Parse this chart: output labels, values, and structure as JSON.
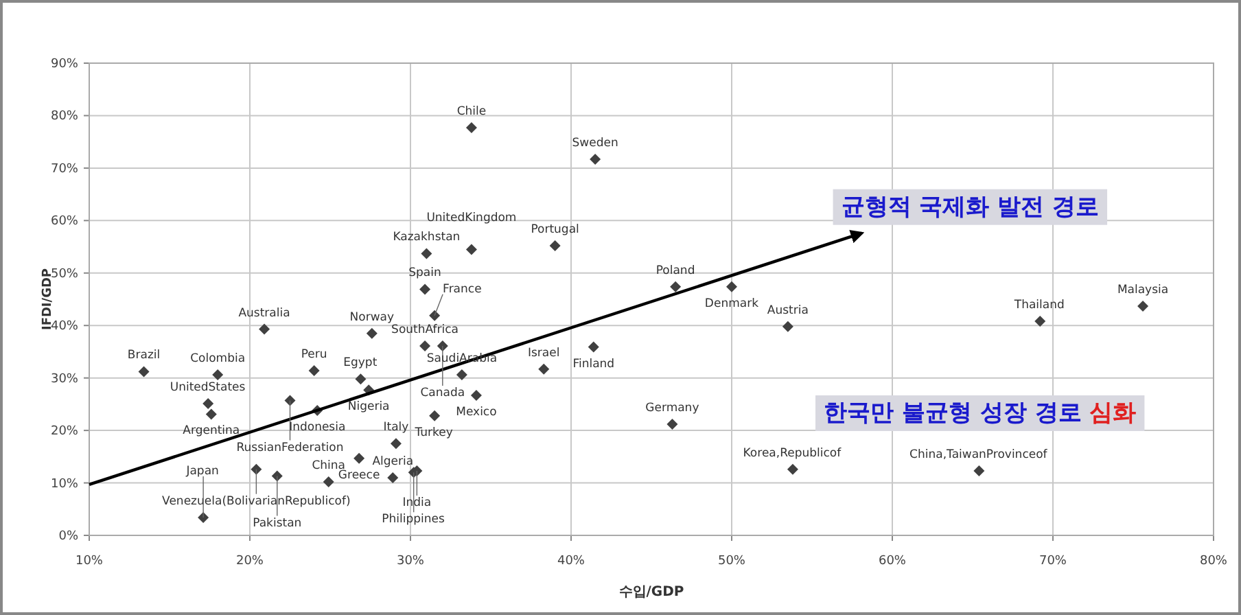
{
  "chart_data": {
    "type": "scatter",
    "xlabel": "수입/GDP",
    "ylabel": "IFDI/GDP",
    "grid": true,
    "xlim": [
      0.1,
      0.8
    ],
    "xticks": [
      {
        "value": 0.1,
        "label": "10%"
      },
      {
        "value": 0.2,
        "label": "20%"
      },
      {
        "value": 0.3,
        "label": "30%"
      },
      {
        "value": 0.4,
        "label": "40%"
      },
      {
        "value": 0.5,
        "label": "50%"
      },
      {
        "value": 0.6,
        "label": "60%"
      },
      {
        "value": 0.7,
        "label": "70%"
      },
      {
        "value": 0.8,
        "label": "80%"
      }
    ],
    "ylim": [
      0,
      0.9
    ],
    "yticks": [
      {
        "value": 0,
        "label": "0%"
      },
      {
        "value": 0.1,
        "label": "10%"
      },
      {
        "value": 0.2,
        "label": "20%"
      },
      {
        "value": 0.3,
        "label": "30%"
      },
      {
        "value": 0.4,
        "label": "40%"
      },
      {
        "value": 0.5,
        "label": "50%"
      },
      {
        "value": 0.6,
        "label": "60%"
      },
      {
        "value": 0.7,
        "label": "70%"
      },
      {
        "value": 0.8,
        "label": "80%"
      },
      {
        "value": 0.9,
        "label": "90%"
      }
    ],
    "series": [
      {
        "marker": "diamond",
        "color": "#404040",
        "x": [
          0.338,
          0.415,
          0.31,
          0.39,
          0.309,
          0.209,
          0.276,
          0.309,
          0.32,
          0.414,
          0.134,
          0.18,
          0.24,
          0.269,
          0.274,
          0.332,
          0.383,
          0.341,
          0.315,
          0.176,
          0.225,
          0.242,
          0.268,
          0.304,
          0.302,
          0.204,
          0.217,
          0.249,
          0.289,
          0.465,
          0.5,
          0.535,
          0.692,
          0.756,
          0.654,
          0.338,
          0.315,
          0.174,
          0.291,
          0.171,
          0.463,
          0.538
        ],
        "values": [
          0.777,
          0.717,
          0.537,
          0.552,
          0.469,
          0.393,
          0.385,
          0.361,
          0.361,
          0.359,
          0.312,
          0.306,
          0.314,
          0.298,
          0.277,
          0.306,
          0.317,
          0.267,
          0.228,
          0.231,
          0.257,
          0.238,
          0.147,
          0.123,
          0.12,
          0.126,
          0.113,
          0.102,
          0.11,
          0.474,
          0.474,
          0.398,
          0.408,
          0.437,
          0.123,
          0.545,
          0.419,
          0.251,
          0.175,
          0.034,
          0.212,
          0.126
        ]
      },
      {
        "type": "line",
        "marker": "none",
        "color": "#000000",
        "x": [
          0.1,
          0.581
        ],
        "values": [
          0.097,
          0.576
        ]
      }
    ],
    "annotations": [
      {
        "text": "Chile",
        "x": 0.338,
        "y": 0.777
      },
      {
        "text": "Sweden",
        "x": 0.415,
        "y": 0.717
      },
      {
        "text": "Kazakhstan",
        "x": 0.31,
        "y": 0.537
      },
      {
        "text": "Portugal",
        "x": 0.39,
        "y": 0.552
      },
      {
        "text": "Spain",
        "x": 0.309,
        "y": 0.469
      },
      {
        "text": "Australia",
        "x": 0.209,
        "y": 0.393
      },
      {
        "text": "Norway",
        "x": 0.276,
        "y": 0.385
      },
      {
        "text": "SouthAfrica",
        "x": 0.309,
        "y": 0.361
      },
      {
        "text": "Canada",
        "x": 0.32,
        "y": 0.361
      },
      {
        "text": "Finland",
        "x": 0.414,
        "y": 0.359
      },
      {
        "text": "Brazil",
        "x": 0.134,
        "y": 0.312
      },
      {
        "text": "Colombia",
        "x": 0.18,
        "y": 0.306
      },
      {
        "text": "Peru",
        "x": 0.24,
        "y": 0.314
      },
      {
        "text": "Egypt",
        "x": 0.269,
        "y": 0.298
      },
      {
        "text": "Nigeria",
        "x": 0.274,
        "y": 0.277
      },
      {
        "text": "SaudiArabia",
        "x": 0.332,
        "y": 0.306
      },
      {
        "text": "Israel",
        "x": 0.383,
        "y": 0.317
      },
      {
        "text": "Mexico",
        "x": 0.341,
        "y": 0.267
      },
      {
        "text": "Turkey",
        "x": 0.315,
        "y": 0.228
      },
      {
        "text": "Argentina",
        "x": 0.176,
        "y": 0.231
      },
      {
        "text": "RussianFederation",
        "x": 0.225,
        "y": 0.257
      },
      {
        "text": "Indonesia",
        "x": 0.242,
        "y": 0.238
      },
      {
        "text": "Greece",
        "x": 0.268,
        "y": 0.147
      },
      {
        "text": "India",
        "x": 0.304,
        "y": 0.123
      },
      {
        "text": "Philippines",
        "x": 0.302,
        "y": 0.12
      },
      {
        "text": "Venezuela(BolivarianRepublicof)",
        "x": 0.204,
        "y": 0.126
      },
      {
        "text": "Pakistan",
        "x": 0.217,
        "y": 0.113
      },
      {
        "text": "China",
        "x": 0.249,
        "y": 0.102
      },
      {
        "text": "Algeria",
        "x": 0.289,
        "y": 0.11
      },
      {
        "text": "Poland",
        "x": 0.465,
        "y": 0.474
      },
      {
        "text": "Denmark",
        "x": 0.5,
        "y": 0.474
      },
      {
        "text": "Austria",
        "x": 0.535,
        "y": 0.398
      },
      {
        "text": "Thailand",
        "x": 0.692,
        "y": 0.408
      },
      {
        "text": "Malaysia",
        "x": 0.756,
        "y": 0.437
      },
      {
        "text": "China,TaiwanProvinceof",
        "x": 0.654,
        "y": 0.123
      },
      {
        "text": "UnitedKingdom",
        "x": 0.338,
        "y": 0.545
      },
      {
        "text": "France",
        "x": 0.315,
        "y": 0.419
      },
      {
        "text": "UnitedStates",
        "x": 0.174,
        "y": 0.251
      },
      {
        "text": "Italy",
        "x": 0.291,
        "y": 0.175
      },
      {
        "text": "Japan",
        "x": 0.171,
        "y": 0.034
      },
      {
        "text": "Germany",
        "x": 0.463,
        "y": 0.212
      },
      {
        "text": "Korea,Republicof",
        "x": 0.538,
        "y": 0.126
      },
      "균형적 국제화 발전 경로",
      "한국만 불균형 성장 경로 심화"
    ]
  }
}
